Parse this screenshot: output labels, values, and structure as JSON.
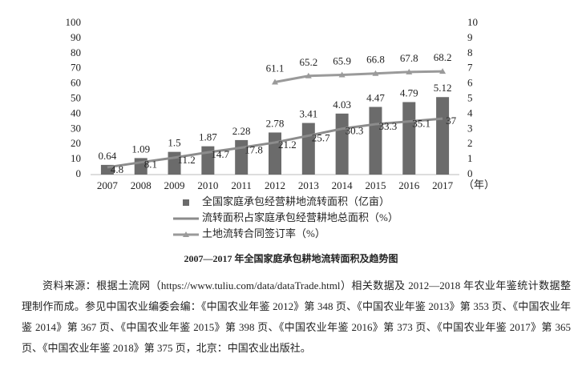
{
  "chart_data": {
    "type": "bar-line",
    "categories": [
      "2007",
      "2008",
      "2009",
      "2010",
      "2011",
      "2012",
      "2013",
      "2014",
      "2015",
      "2016",
      "2017"
    ],
    "x_label": "（年）",
    "series": [
      {
        "name": "全国家庭承包经营耕地流转面积（亿亩）",
        "type": "bar",
        "axis": "y2",
        "color": "#6b6b6b",
        "values": [
          0.64,
          1.09,
          1.5,
          1.87,
          2.28,
          2.78,
          3.41,
          4.03,
          4.47,
          4.79,
          5.12
        ]
      },
      {
        "name": "流转面积占家庭承包经营耕地总面积（%）",
        "type": "line",
        "color": "#8c8c8c",
        "values": [
          4.8,
          8.1,
          11.2,
          14.7,
          17.8,
          21.2,
          25.7,
          30.3,
          33.3,
          35.1,
          37
        ]
      },
      {
        "name": "土地流转合同签订率（%）",
        "type": "line",
        "marker": "triangle",
        "color": "#9a9a9a",
        "values": [
          null,
          null,
          null,
          null,
          null,
          61.1,
          65.2,
          65.9,
          66.8,
          67.8,
          68.2
        ]
      }
    ],
    "ylim": [
      0,
      100
    ],
    "yticks": [
      0,
      10,
      20,
      30,
      40,
      50,
      60,
      70,
      80,
      90,
      100
    ],
    "y2lim": [
      0,
      10
    ],
    "y2ticks": [
      0,
      1,
      2,
      3,
      4,
      5,
      6,
      7,
      8,
      9,
      10
    ],
    "grid": false
  },
  "caption": "2007—2017 年全国家庭承包耕地流转面积及趋势图",
  "source": "资料来源：根据土流网（https://www.tuliu.com/data/dataTrade.html）相关数据及 2012—2018 年农业年鉴统计数据整理制作而成。参见中国农业编委会编：《中国农业年鉴 2012》第 348 页、《中国农业年鉴 2013》第 353 页、《中国农业年鉴 2014》第 367 页、《中国农业年鉴 2015》第 398 页、《中国农业年鉴 2016》第 373 页、《中国农业年鉴 2017》第 365 页、《中国农业年鉴 2018》第 375 页，北京：中国农业出版社。"
}
